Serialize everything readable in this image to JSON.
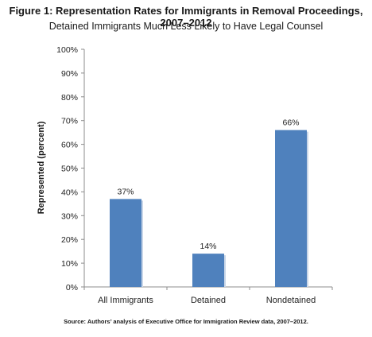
{
  "title": "Figure 1: Representation Rates for Immigrants in Removal Proceedings, 2007–2012",
  "subtitle": "Detained Immigrants Much Less Likely to Have Legal Counsel",
  "source": "Source: Authors’ analysis of Executive Office for Immigration Review data, 2007–2012.",
  "chart_data": {
    "type": "bar",
    "ylabel": "Represented  (percent)",
    "xlabel": "",
    "categories": [
      "All Immigrants",
      "Detained",
      "Nondetained"
    ],
    "values": [
      37,
      14,
      66
    ],
    "data_labels": [
      "37%",
      "14%",
      "66%"
    ],
    "ylim": [
      0,
      100
    ],
    "yticks": [
      0,
      10,
      20,
      30,
      40,
      50,
      60,
      70,
      80,
      90,
      100
    ],
    "ytick_labels": [
      "0%",
      "10%",
      "20%",
      "30%",
      "40%",
      "50%",
      "60%",
      "70%",
      "80%",
      "90%",
      "100%"
    ],
    "grid": false,
    "legend": "none",
    "bar_color": "#4f81bd"
  }
}
